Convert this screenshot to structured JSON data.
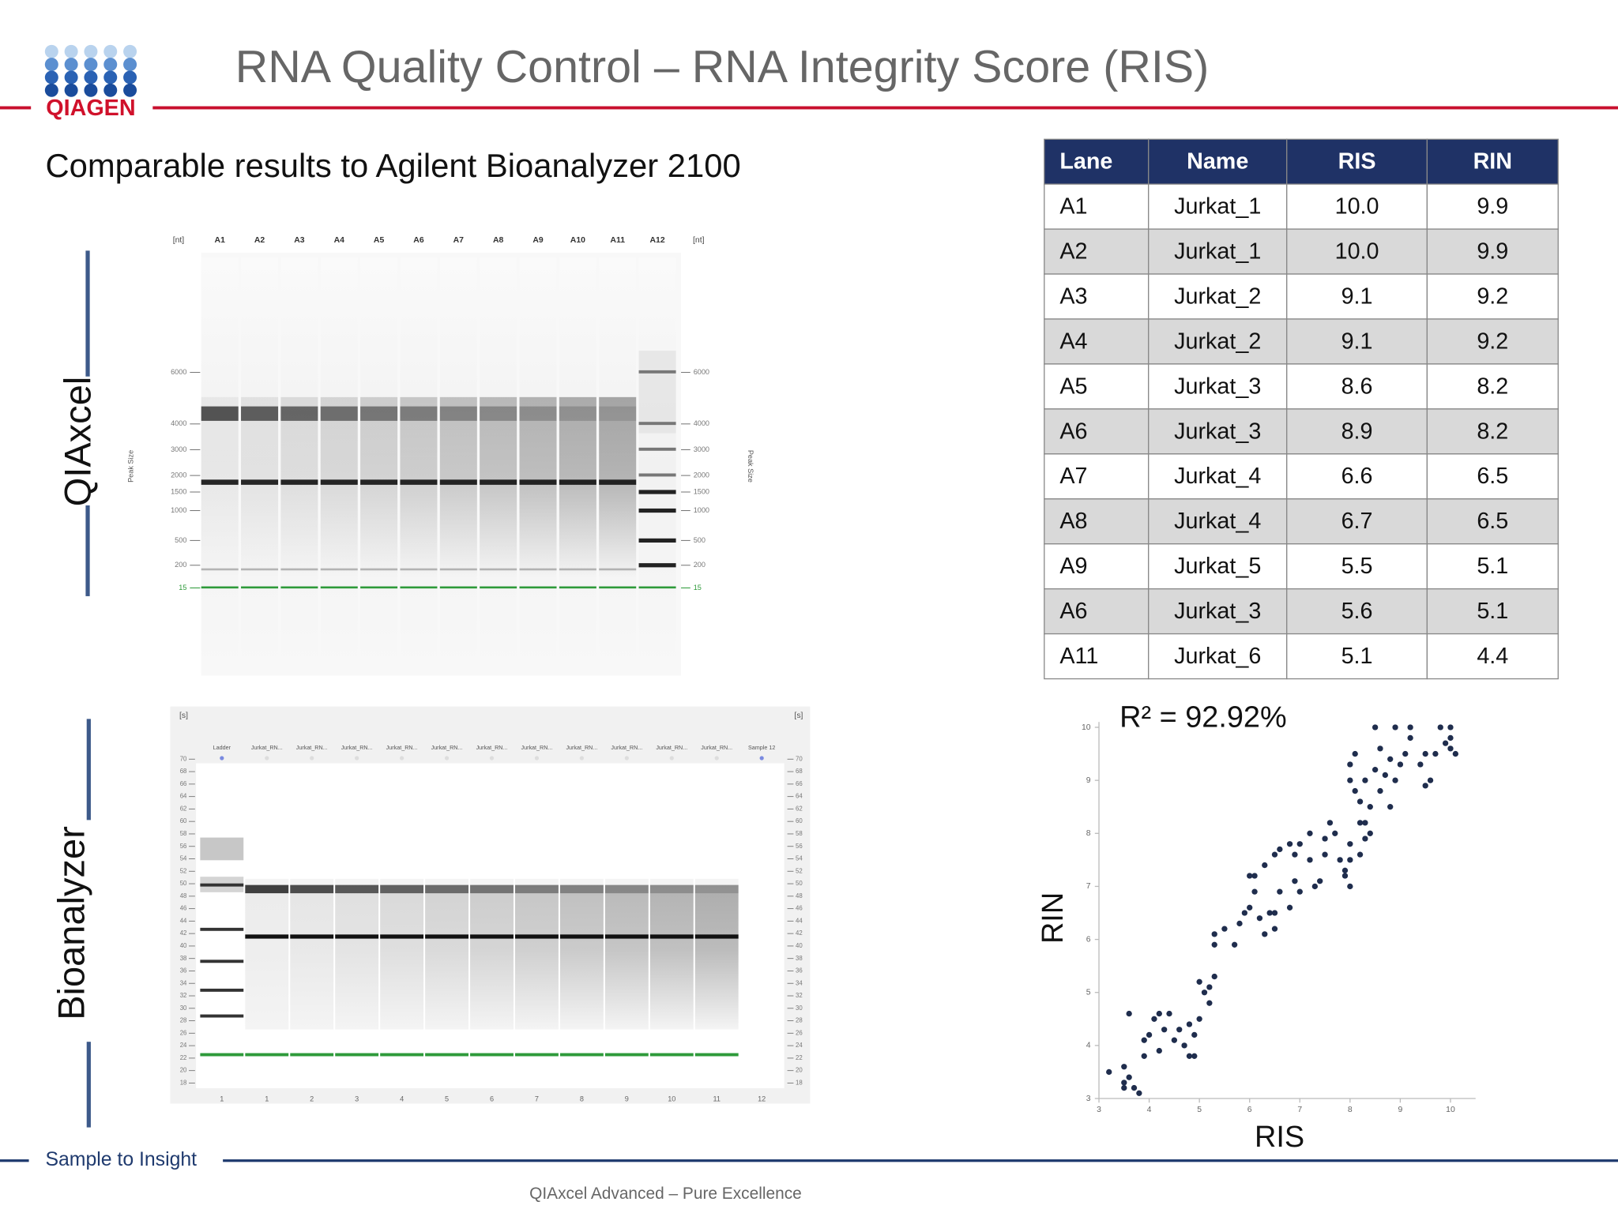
{
  "header": {
    "title": "RNA Quality Control –  RNA Integrity Score (RIS)",
    "logo": "QIAGEN"
  },
  "subtitle": "Comparable results to Agilent Bioanalyzer 2100",
  "qiaxcel_gel": {
    "label": "QIAxcel",
    "unit": "[nt]",
    "axis_label": "Peak Size",
    "lanes": [
      "A1",
      "A2",
      "A3",
      "A4",
      "A5",
      "A6",
      "A7",
      "A8",
      "A9",
      "A10",
      "A11",
      "A12"
    ],
    "sizes": [
      6000,
      4000,
      3000,
      2000,
      1500,
      1000,
      500,
      200,
      15
    ]
  },
  "bioanalyzer_gel": {
    "label": "Bioanalyzer",
    "unit": "[s]",
    "lane_headers": [
      "Ladder",
      "Jurkat_RN...",
      "Jurkat_RN...",
      "Jurkat_RN...",
      "Jurkat_RN...",
      "Jurkat_RN...",
      "Jurkat_RN...",
      "Jurkat_RN...",
      "Jurkat_RN...",
      "Jurkat_RN...",
      "Jurkat_RN...",
      "Jurkat_RN...",
      "Sample 12"
    ],
    "lane_numbers": [
      1,
      1,
      2,
      3,
      4,
      5,
      6,
      7,
      8,
      9,
      10,
      11,
      12
    ],
    "times": [
      70,
      68,
      66,
      64,
      62,
      60,
      58,
      56,
      54,
      52,
      50,
      48,
      46,
      44,
      42,
      40,
      38,
      36,
      34,
      32,
      30,
      28,
      26,
      24,
      22,
      20,
      18
    ]
  },
  "table": {
    "header": [
      "Lane",
      "Name",
      "RIS",
      "RIN"
    ],
    "rows": [
      [
        "A1",
        "Jurkat_1",
        "10.0",
        "9.9"
      ],
      [
        "A2",
        "Jurkat_1",
        "10.0",
        "9.9"
      ],
      [
        "A3",
        "Jurkat_2",
        "9.1",
        "9.2"
      ],
      [
        "A4",
        "Jurkat_2",
        "9.1",
        "9.2"
      ],
      [
        "A5",
        "Jurkat_3",
        "8.6",
        "8.2"
      ],
      [
        "A6",
        "Jurkat_3",
        "8.9",
        "8.2"
      ],
      [
        "A7",
        "Jurkat_4",
        "6.6",
        "6.5"
      ],
      [
        "A8",
        "Jurkat_4",
        "6.7",
        "6.5"
      ],
      [
        "A9",
        "Jurkat_5",
        "5.5",
        "5.1"
      ],
      [
        "A6",
        "Jurkat_3",
        "5.6",
        "5.1"
      ],
      [
        "A11",
        "Jurkat_6",
        "5.1",
        "4.4"
      ]
    ]
  },
  "chart_data": {
    "type": "scatter",
    "annotation": "R² = 92.92%",
    "x_label": "RIS",
    "y_label": "RIN",
    "color": "#1f2d4d",
    "x": [
      3.2,
      3.5,
      3.5,
      3.6,
      3.5,
      3.7,
      3.8,
      3.6,
      3.9,
      4.0,
      4.1,
      4.2,
      4.3,
      4.4,
      4.5,
      4.6,
      4.7,
      4.8,
      4.9,
      4.8,
      4.9,
      5.0,
      4.2,
      3.9,
      5.0,
      5.1,
      5.2,
      5.3,
      5.2,
      5.3,
      5.3,
      5.5,
      5.7,
      5.8,
      5.9,
      6.0,
      6.2,
      6.1,
      6.3,
      6.4,
      6.5,
      6.6,
      6.8,
      6.5,
      6.0,
      6.1,
      6.3,
      6.5,
      6.6,
      6.8,
      6.9,
      7.0,
      7.2,
      7.4,
      6.9,
      7.0,
      7.3,
      7.5,
      7.5,
      7.7,
      7.8,
      7.9,
      8.0,
      8.2,
      8.0,
      7.9,
      8.0,
      8.2,
      8.1,
      8.3,
      8.4,
      8.0,
      8.0,
      8.1,
      8.3,
      8.5,
      8.6,
      8.7,
      8.8,
      8.9,
      9.0,
      9.1,
      9.2,
      8.8,
      8.6,
      8.5,
      8.9,
      9.2,
      9.5,
      9.7,
      9.8,
      10.0,
      10.0,
      9.9,
      10.0,
      10.1,
      9.6,
      9.4,
      9.5,
      8.2,
      8.4,
      8.3,
      7.6,
      7.2
    ],
    "y": [
      3.5,
      3.3,
      3.6,
      3.4,
      3.2,
      3.2,
      3.1,
      4.6,
      3.8,
      4.2,
      4.5,
      3.9,
      4.3,
      4.6,
      4.1,
      4.3,
      4.0,
      4.4,
      4.2,
      3.8,
      3.8,
      4.5,
      4.6,
      4.1,
      5.2,
      5.0,
      5.1,
      5.3,
      4.8,
      5.9,
      6.1,
      6.2,
      5.9,
      6.3,
      6.5,
      6.6,
      6.4,
      6.9,
      6.1,
      6.5,
      6.5,
      6.9,
      6.6,
      6.2,
      7.2,
      7.2,
      7.4,
      7.6,
      7.7,
      7.8,
      7.6,
      7.8,
      7.5,
      7.1,
      7.1,
      6.9,
      7.0,
      7.6,
      7.9,
      8.0,
      7.5,
      7.3,
      7.8,
      7.6,
      7.0,
      7.2,
      7.5,
      8.6,
      8.8,
      8.2,
      8.5,
      9.0,
      9.3,
      9.5,
      9.0,
      9.2,
      8.8,
      9.1,
      9.4,
      9.0,
      9.3,
      9.5,
      9.8,
      8.5,
      9.6,
      10.0,
      10.0,
      10.0,
      9.5,
      9.5,
      10.0,
      10.0,
      9.8,
      9.7,
      9.6,
      9.5,
      9.0,
      9.3,
      8.9,
      8.2,
      8.0,
      7.9,
      8.2,
      8.0
    ],
    "xlim": [
      3,
      10.5
    ],
    "ylim": [
      3,
      10.1
    ],
    "xticks": [
      3,
      4,
      5,
      6,
      7,
      8,
      9,
      10
    ],
    "yticks": [
      3,
      4,
      5,
      6,
      7,
      8,
      9,
      10
    ]
  },
  "footer": {
    "tagline": "Sample to Insight",
    "text": "QIAxcel Advanced – Pure Excellence"
  }
}
